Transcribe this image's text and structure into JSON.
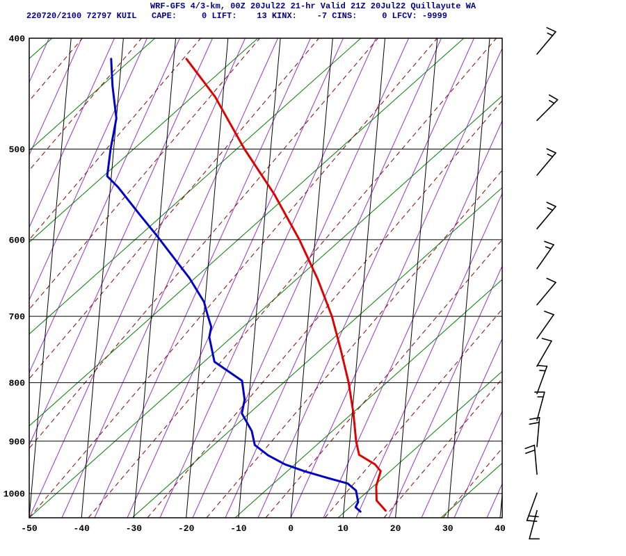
{
  "header": {
    "title": "WRF-GFS 4/3-km, 00Z 20Jul22 21-hr Valid 21Z 20Jul22 Quillayute WA",
    "subtitle": "220720/2100 72797 KUIL   CAPE:     0 LIFT:    13 KINX:    -7 CINS:     0 LFCV: -9999",
    "title_color": "#00008b"
  },
  "chart_data": {
    "type": "skewt",
    "model": "WRF-GFS 4/3-km",
    "init": "00Z 20Jul22",
    "forecast_hour": "21-hr",
    "valid": "21Z 20Jul22",
    "location": "Quillayute WA",
    "station": "72797 KUIL",
    "sounding_time": "220720/2100",
    "indices": {
      "CAPE": 0,
      "LIFT": 13,
      "KINX": -7,
      "CINS": 0,
      "LFCV": -9999
    },
    "axes": {
      "pressure_ticks": [
        400,
        500,
        600,
        700,
        800,
        900,
        1000
      ],
      "pressure_range": [
        400,
        1050
      ],
      "temp_ticks": [
        -50,
        -40,
        -30,
        -20,
        -10,
        0,
        10,
        20,
        30,
        40
      ],
      "temp_range_c": [
        -50,
        40
      ],
      "skew_shift_c": 8,
      "grid_color": "#000000"
    },
    "series": [
      {
        "name": "temperature",
        "color": "#e00000",
        "points": [
          [
            417,
            -27.6
          ],
          [
            450,
            -21.5
          ],
          [
            500,
            -15.0
          ],
          [
            548,
            -8.5
          ],
          [
            600,
            -3.0
          ],
          [
            650,
            1.2
          ],
          [
            700,
            4.5
          ],
          [
            750,
            6.8
          ],
          [
            800,
            8.8
          ],
          [
            850,
            10.2
          ],
          [
            900,
            11.2
          ],
          [
            925,
            12.0
          ],
          [
            943,
            15.2
          ],
          [
            956,
            16.4
          ],
          [
            985,
            15.8
          ],
          [
            1014,
            16.1
          ],
          [
            1035,
            18.0
          ]
        ]
      },
      {
        "name": "dewpoint",
        "color": "#0000cd",
        "points": [
          [
            417,
            -42.0
          ],
          [
            440,
            -41.3
          ],
          [
            470,
            -40.0
          ],
          [
            500,
            -40.6
          ],
          [
            528,
            -40.8
          ],
          [
            540,
            -38.5
          ],
          [
            570,
            -34.0
          ],
          [
            596,
            -30.2
          ],
          [
            620,
            -27.0
          ],
          [
            648,
            -23.4
          ],
          [
            680,
            -20.2
          ],
          [
            700,
            -19.2
          ],
          [
            715,
            -18.4
          ],
          [
            730,
            -18.6
          ],
          [
            767,
            -17.2
          ],
          [
            797,
            -11.6
          ],
          [
            828,
            -10.8
          ],
          [
            851,
            -11.1
          ],
          [
            882,
            -8.9
          ],
          [
            907,
            -8.1
          ],
          [
            926,
            -5.4
          ],
          [
            943,
            -2.0
          ],
          [
            956,
            1.8
          ],
          [
            969,
            6.3
          ],
          [
            980,
            10.3
          ],
          [
            994,
            12.0
          ],
          [
            1017,
            12.6
          ],
          [
            1028,
            12.2
          ],
          [
            1037,
            13.2
          ]
        ]
      }
    ],
    "wind_barbs": {
      "color": "#000000",
      "levels": [
        {
          "p": 413,
          "dir": 40,
          "spd": 15
        },
        {
          "p": 472,
          "dir": 45,
          "spd": 15
        },
        {
          "p": 527,
          "dir": 40,
          "spd": 15
        },
        {
          "p": 587,
          "dir": 40,
          "spd": 15
        },
        {
          "p": 636,
          "dir": 35,
          "spd": 15
        },
        {
          "p": 684,
          "dir": 40,
          "spd": 10
        },
        {
          "p": 732,
          "dir": 35,
          "spd": 10
        },
        {
          "p": 774,
          "dir": 30,
          "spd": 10
        },
        {
          "p": 818,
          "dir": 20,
          "spd": 15
        },
        {
          "p": 863,
          "dir": 15,
          "spd": 15
        },
        {
          "p": 910,
          "dir": 5,
          "spd": 20
        },
        {
          "p": 962,
          "dir": 355,
          "spd": 20
        },
        {
          "p": 999,
          "dir": 200,
          "spd": 20
        },
        {
          "p": 1035,
          "dir": 195,
          "spd": 10
        }
      ]
    },
    "background": {
      "isobar_color": "#000000",
      "isotherm_color": "#000000",
      "green_lines": {
        "color": "#008000",
        "slope": 1.12,
        "spacing": 148
      },
      "dashed_lines": {
        "color": "#8b0000",
        "slope": 0.85,
        "spacing": 85,
        "dash": "7,5"
      },
      "purple_lines": {
        "color": "#9932cc",
        "slope": 0.45,
        "spacing": 47
      }
    }
  }
}
